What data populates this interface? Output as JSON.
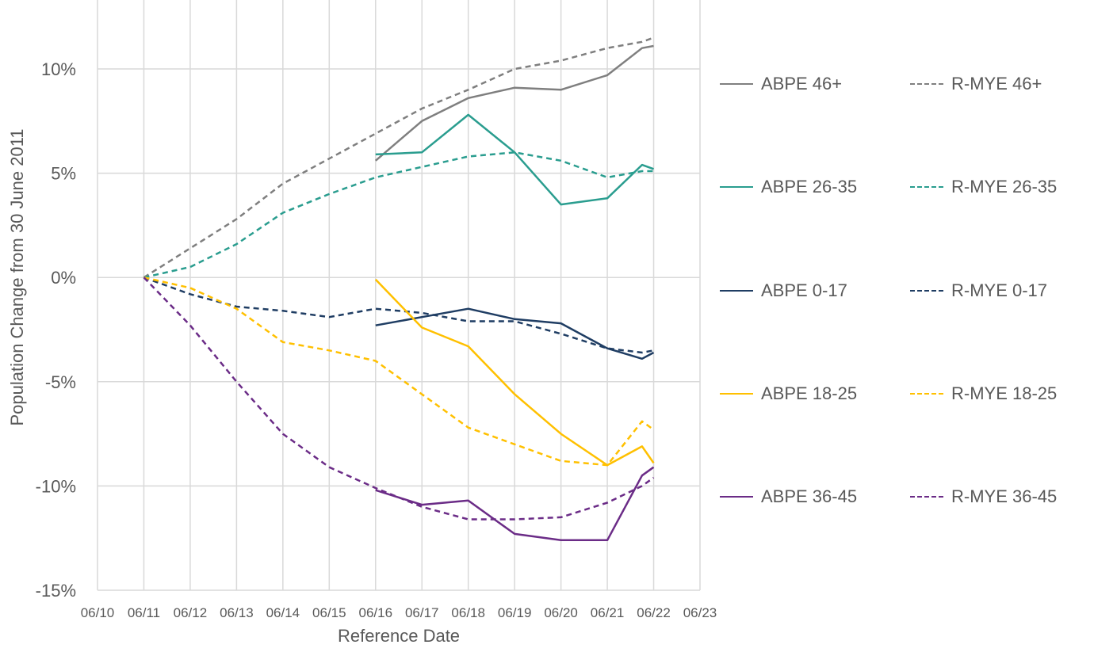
{
  "chart_data": {
    "type": "line",
    "title": "",
    "xlabel": "Reference Date",
    "ylabel": "Population Change from 30 June 2011",
    "x_ticks": [
      "06/10",
      "06/11",
      "06/12",
      "06/13",
      "06/14",
      "06/15",
      "06/16",
      "06/17",
      "06/18",
      "06/19",
      "06/20",
      "06/21",
      "06/22",
      "06/23"
    ],
    "y_ticks": [
      "10%",
      "5%",
      "0%",
      "-5%",
      "-10%",
      "-15%"
    ],
    "y_tick_values": [
      10,
      5,
      0,
      -5,
      -10,
      -15
    ],
    "xlim": [
      "2010-06",
      "2023-06"
    ],
    "ylim": [
      -15,
      13
    ],
    "grid": true,
    "legend_position": "right",
    "series": [
      {
        "name": "ABPE 46+",
        "color": "#7f7f7f",
        "dashed": false,
        "x": [
          "2016-06",
          "2017-06",
          "2018-06",
          "2019-06",
          "2020-06",
          "2021-06",
          "2022-03",
          "2022-06"
        ],
        "values": [
          5.6,
          7.5,
          8.6,
          9.1,
          9.0,
          9.7,
          11.0,
          11.1
        ]
      },
      {
        "name": "R-MYE 46+",
        "color": "#7f7f7f",
        "dashed": true,
        "x": [
          "2011-06",
          "2012-06",
          "2013-06",
          "2014-06",
          "2015-06",
          "2016-06",
          "2017-06",
          "2018-06",
          "2019-06",
          "2020-06",
          "2021-06",
          "2022-03",
          "2022-06"
        ],
        "values": [
          0,
          1.4,
          2.8,
          4.5,
          5.7,
          6.9,
          8.1,
          9.0,
          10.0,
          10.4,
          11.0,
          11.3,
          11.5
        ]
      },
      {
        "name": "ABPE 26-35",
        "color": "#2a9d8f",
        "dashed": false,
        "x": [
          "2016-06",
          "2017-06",
          "2018-06",
          "2019-06",
          "2020-06",
          "2021-06",
          "2022-03",
          "2022-06"
        ],
        "values": [
          5.9,
          6.0,
          7.8,
          6.0,
          3.5,
          3.8,
          5.4,
          5.2
        ]
      },
      {
        "name": "R-MYE 26-35",
        "color": "#2a9d8f",
        "dashed": true,
        "x": [
          "2011-06",
          "2012-06",
          "2013-06",
          "2014-06",
          "2015-06",
          "2016-06",
          "2017-06",
          "2018-06",
          "2019-06",
          "2020-06",
          "2021-06",
          "2022-03",
          "2022-06"
        ],
        "values": [
          0,
          0.5,
          1.6,
          3.1,
          4.0,
          4.8,
          5.3,
          5.8,
          6.0,
          5.6,
          4.8,
          5.1,
          5.1
        ]
      },
      {
        "name": "ABPE 0-17",
        "color": "#1f3d63",
        "dashed": false,
        "x": [
          "2016-06",
          "2017-06",
          "2018-06",
          "2019-06",
          "2020-06",
          "2021-06",
          "2022-03",
          "2022-06"
        ],
        "values": [
          -2.3,
          -1.9,
          -1.5,
          -2.0,
          -2.2,
          -3.4,
          -3.9,
          -3.6
        ]
      },
      {
        "name": "R-MYE 0-17",
        "color": "#1f3d63",
        "dashed": true,
        "x": [
          "2011-06",
          "2012-06",
          "2013-06",
          "2014-06",
          "2015-06",
          "2016-06",
          "2017-06",
          "2018-06",
          "2019-06",
          "2020-06",
          "2021-06",
          "2022-03",
          "2022-06"
        ],
        "values": [
          0,
          -0.8,
          -1.4,
          -1.6,
          -1.9,
          -1.5,
          -1.7,
          -2.1,
          -2.1,
          -2.7,
          -3.4,
          -3.6,
          -3.5
        ]
      },
      {
        "name": "ABPE 18-25",
        "color": "#ffc000",
        "dashed": false,
        "x": [
          "2016-06",
          "2017-06",
          "2018-06",
          "2019-06",
          "2020-06",
          "2021-06",
          "2022-03",
          "2022-06"
        ],
        "values": [
          -0.1,
          -2.4,
          -3.3,
          -5.6,
          -7.5,
          -9.0,
          -8.1,
          -8.9
        ]
      },
      {
        "name": "R-MYE 18-25",
        "color": "#ffc000",
        "dashed": true,
        "x": [
          "2011-06",
          "2012-06",
          "2013-06",
          "2014-06",
          "2015-06",
          "2016-06",
          "2017-06",
          "2018-06",
          "2019-06",
          "2020-06",
          "2021-06",
          "2022-03",
          "2022-06"
        ],
        "values": [
          0,
          -0.5,
          -1.5,
          -3.1,
          -3.5,
          -4.0,
          -5.6,
          -7.2,
          -8.0,
          -8.8,
          -9.0,
          -6.9,
          -7.3
        ]
      },
      {
        "name": "ABPE 36-45",
        "color": "#6b2c87",
        "dashed": false,
        "x": [
          "2016-06",
          "2017-06",
          "2018-06",
          "2019-06",
          "2020-06",
          "2021-06",
          "2022-03",
          "2022-06"
        ],
        "values": [
          -10.2,
          -10.9,
          -10.7,
          -12.3,
          -12.6,
          -12.6,
          -9.5,
          -9.1
        ]
      },
      {
        "name": "R-MYE 36-45",
        "color": "#6b2c87",
        "dashed": true,
        "x": [
          "2011-06",
          "2012-06",
          "2013-06",
          "2014-06",
          "2015-06",
          "2016-06",
          "2017-06",
          "2018-06",
          "2019-06",
          "2020-06",
          "2021-06",
          "2022-03",
          "2022-06"
        ],
        "values": [
          0,
          -2.3,
          -5.0,
          -7.5,
          -9.1,
          -10.1,
          -11.0,
          -11.6,
          -11.6,
          -11.5,
          -10.8,
          -10.0,
          -9.6
        ]
      }
    ]
  }
}
